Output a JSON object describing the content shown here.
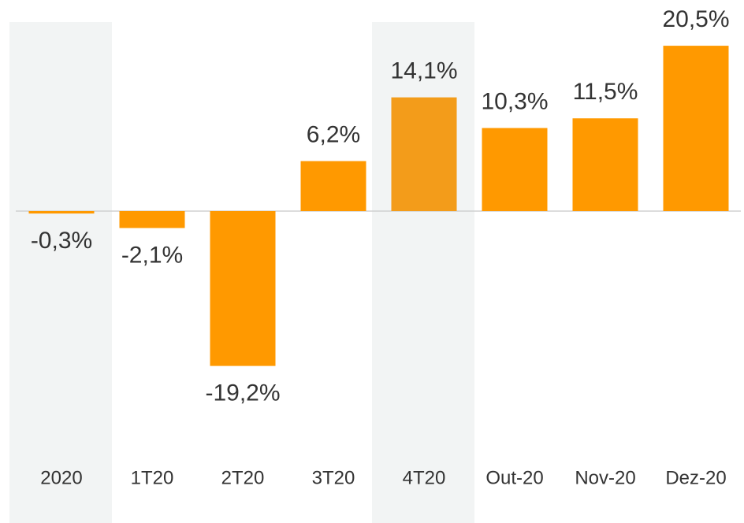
{
  "chart_data": {
    "type": "bar",
    "categories": [
      "2020",
      "1T20",
      "2T20",
      "3T20",
      "4T20",
      "Out-20",
      "Nov-20",
      "Dez-20"
    ],
    "values": [
      -0.3,
      -2.1,
      -19.2,
      6.2,
      14.1,
      10.3,
      11.5,
      20.5
    ],
    "value_labels": [
      "-0,3%",
      "-2,1%",
      "-19,2%",
      "6,2%",
      "14,1%",
      "10,3%",
      "11,5%",
      "20,5%"
    ],
    "colors": [
      "#ff9900",
      "#ff9900",
      "#ff9900",
      "#ff9900",
      "#f39c1a",
      "#ff9900",
      "#ff9900",
      "#ff9900"
    ],
    "highlight": [
      "2020",
      "4T20"
    ]
  }
}
